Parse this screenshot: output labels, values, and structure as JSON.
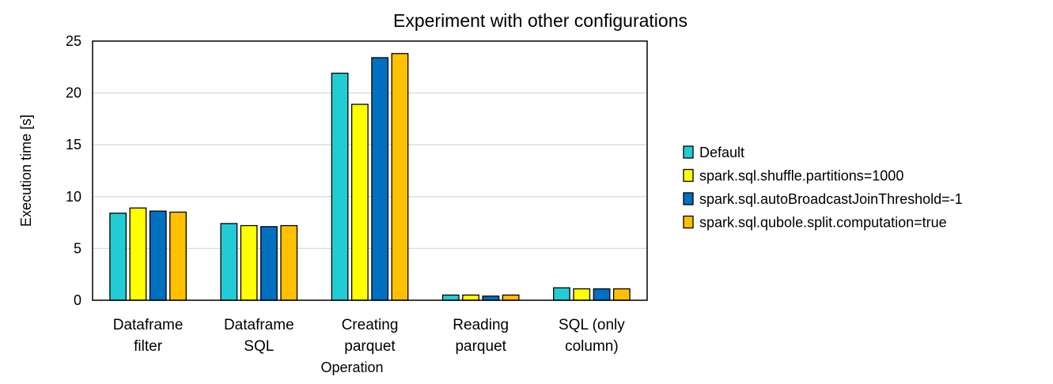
{
  "chart_data": {
    "type": "bar",
    "title": "Experiment with other configurations",
    "xlabel": "Operation",
    "ylabel": "Execution time [s]",
    "ylim": [
      0,
      25
    ],
    "yticks": [
      0,
      5,
      10,
      15,
      20,
      25
    ],
    "grid": true,
    "legend_position": "right",
    "categories": [
      [
        "Dataframe",
        "filter"
      ],
      [
        "Dataframe",
        "SQL"
      ],
      [
        "Creating",
        "parquet"
      ],
      [
        "Reading",
        "parquet"
      ],
      [
        "SQL (only",
        "column)"
      ]
    ],
    "series": [
      {
        "name": "Default",
        "color": "#22CCD4",
        "values": [
          8.4,
          7.4,
          21.9,
          0.5,
          1.2
        ]
      },
      {
        "name": "spark.sql.shuffle.partitions=1000",
        "color": "#FFFF00",
        "values": [
          8.9,
          7.2,
          18.9,
          0.5,
          1.1
        ]
      },
      {
        "name": "spark.sql.autoBroadcastJoinThreshold=-1",
        "color": "#0070C0",
        "values": [
          8.6,
          7.1,
          23.4,
          0.4,
          1.1
        ]
      },
      {
        "name": "spark.sql.qubole.split.computation=true",
        "color": "#FFC000",
        "values": [
          8.5,
          7.2,
          23.8,
          0.5,
          1.1
        ]
      }
    ]
  }
}
